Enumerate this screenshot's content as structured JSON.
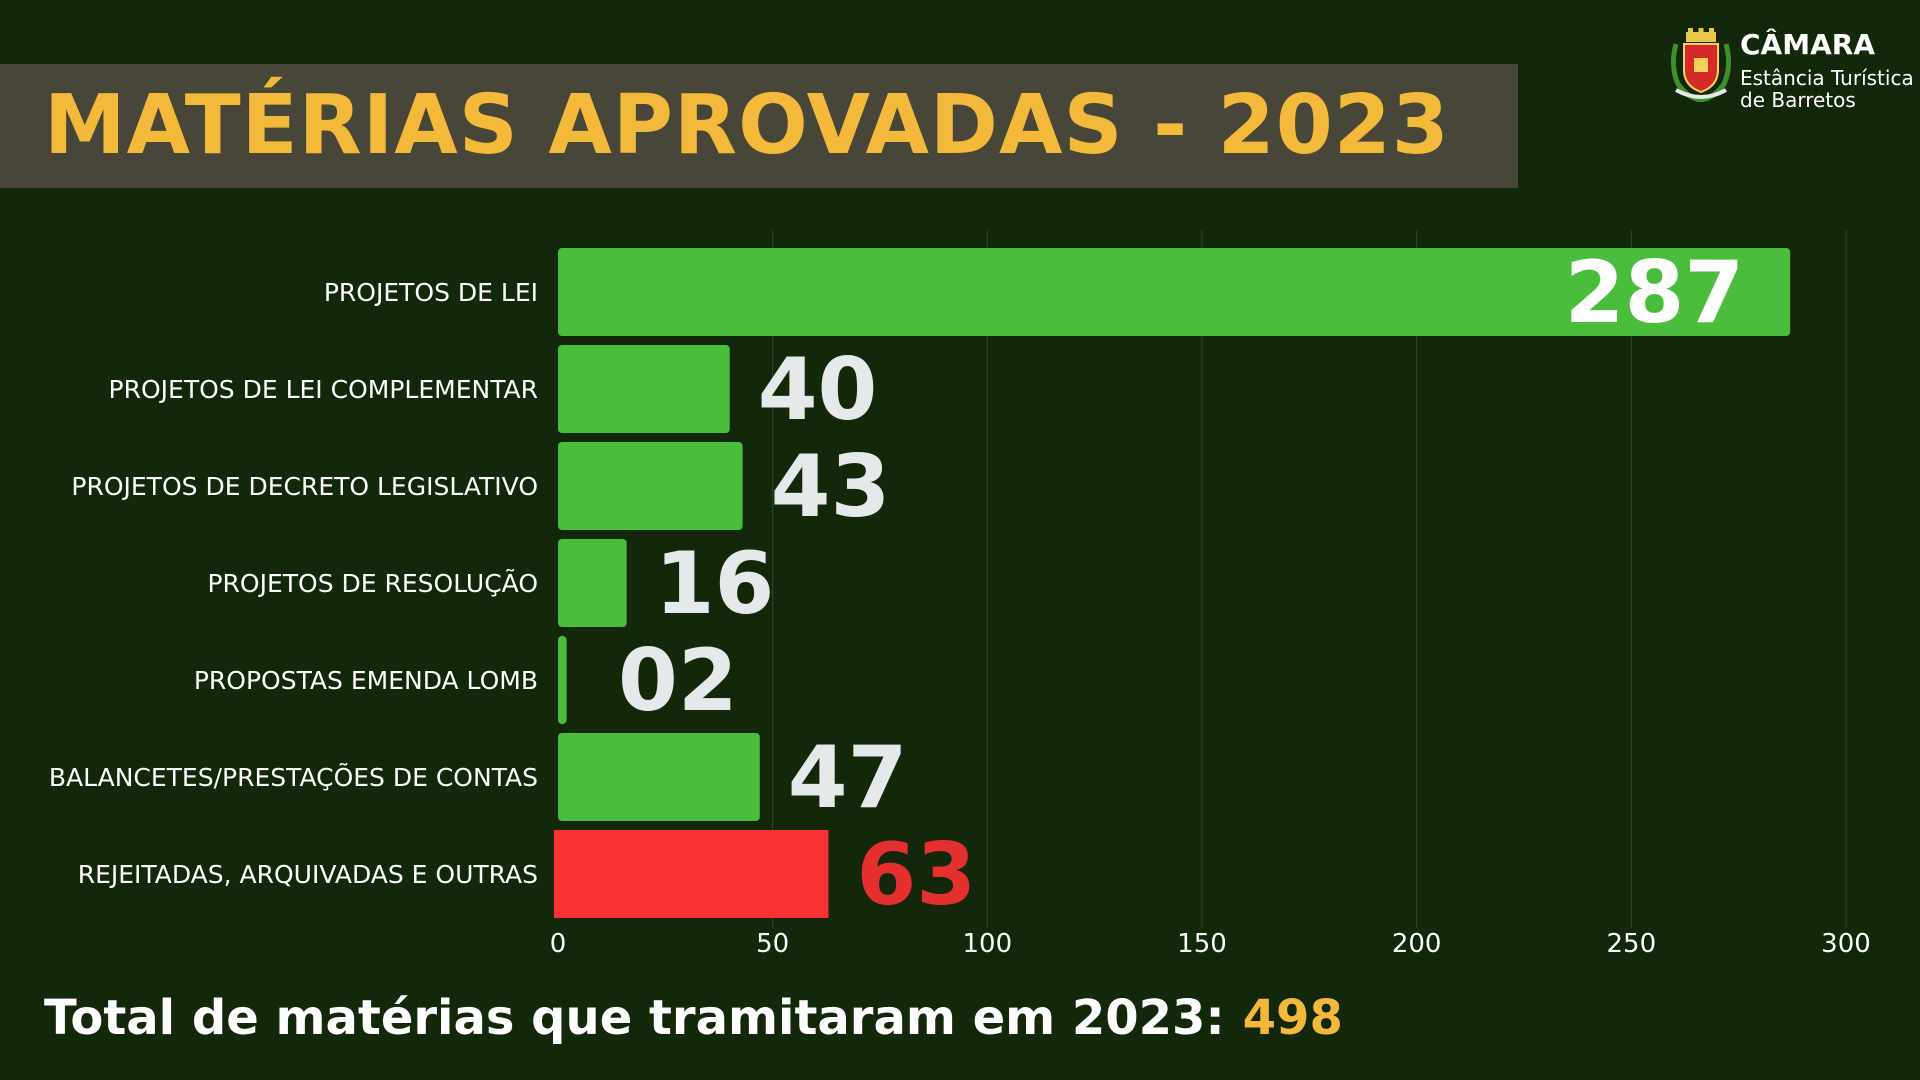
{
  "title": "MATÉRIAS APROVADAS - 2023",
  "logo": {
    "name": "CÂMARA",
    "subtitle_line1": "Estância Turística",
    "subtitle_line2": "de Barretos",
    "icon": "coat-of-arms-icon"
  },
  "colors": {
    "background": "#13270a",
    "title_band": "#484539",
    "title_text": "#f2b93b",
    "bar_green": "#4bbd3c",
    "bar_red": "#fa3131",
    "label_red": "#e63030",
    "value_light": "#e6e9ea"
  },
  "chart_data": {
    "type": "bar",
    "orientation": "horizontal",
    "categories": [
      "PROJETOS DE LEI",
      "PROJETOS DE LEI COMPLEMENTAR",
      "PROJETOS DE DECRETO LEGISLATIVO",
      "PROJETOS DE RESOLUÇÃO",
      "PROPOSTAS EMENDA LOMB",
      "BALANCETES/PRESTAÇÕES DE CONTAS",
      "REJEITADAS, ARQUIVADAS E OUTRAS"
    ],
    "values": [
      287,
      40,
      43,
      16,
      2,
      47,
      63
    ],
    "value_labels": [
      "287",
      "40",
      "43",
      "16",
      "02",
      "47",
      "63"
    ],
    "highlight_index": 6,
    "xlim": [
      0,
      300
    ],
    "xticks": [
      0,
      50,
      100,
      150,
      200,
      250,
      300
    ],
    "grid": true,
    "legend": "none"
  },
  "footer": {
    "label": "Total de matérias que tramitaram em 2023:",
    "value": "498"
  }
}
